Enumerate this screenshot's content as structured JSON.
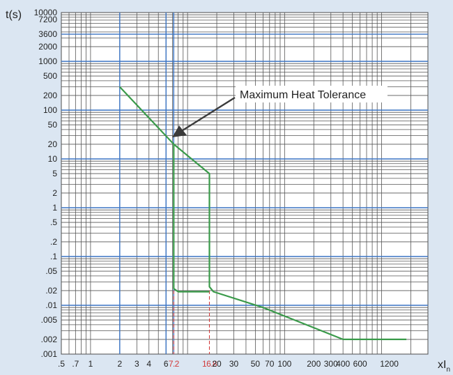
{
  "chart_data": {
    "type": "line",
    "title": "",
    "ylabel": "t(s)",
    "xlabel": "xI",
    "xlabel_sub": "n",
    "x_scale": "log",
    "y_scale": "log",
    "xlim": [
      0.5,
      3000
    ],
    "ylim": [
      0.001,
      10000
    ],
    "grid": true,
    "x_ticks": [
      {
        "label": ".5",
        "value": 0.5
      },
      {
        "label": ".7",
        "value": 0.7
      },
      {
        "label": "1",
        "value": 1
      },
      {
        "label": "2",
        "value": 2
      },
      {
        "label": "3",
        "value": 3
      },
      {
        "label": "4",
        "value": 4
      },
      {
        "label": "6",
        "value": 6
      },
      {
        "label": "7.2",
        "value": 7.2,
        "highlight": true
      },
      {
        "label": "16.8",
        "value": 16.8,
        "highlight": true
      },
      {
        "label": "20",
        "value": 20
      },
      {
        "label": "30",
        "value": 30
      },
      {
        "label": "50",
        "value": 50
      },
      {
        "label": "70",
        "value": 70
      },
      {
        "label": "100",
        "value": 100
      },
      {
        "label": "200",
        "value": 200
      },
      {
        "label": "300",
        "value": 300
      },
      {
        "label": "400",
        "value": 400
      },
      {
        "label": "600",
        "value": 600
      },
      {
        "label": "1200",
        "value": 1200
      }
    ],
    "y_ticks": [
      {
        "label": ".001",
        "value": 0.001
      },
      {
        "label": ".002",
        "value": 0.002
      },
      {
        "label": ".005",
        "value": 0.005
      },
      {
        "label": ".01",
        "value": 0.01
      },
      {
        "label": ".02",
        "value": 0.02
      },
      {
        "label": ".05",
        "value": 0.05
      },
      {
        "label": ".1",
        "value": 0.1
      },
      {
        "label": ".2",
        "value": 0.2
      },
      {
        "label": ".5",
        "value": 0.5
      },
      {
        "label": "1",
        "value": 1
      },
      {
        "label": "2",
        "value": 2
      },
      {
        "label": "5",
        "value": 5
      },
      {
        "label": "10",
        "value": 10
      },
      {
        "label": "20",
        "value": 20
      },
      {
        "label": "50",
        "value": 50
      },
      {
        "label": "100",
        "value": 100
      },
      {
        "label": "200",
        "value": 200
      },
      {
        "label": "500",
        "value": 500
      },
      {
        "label": "1000",
        "value": 1000
      },
      {
        "label": "2000",
        "value": 2000
      },
      {
        "label": "3600",
        "value": 3600
      },
      {
        "label": "7200",
        "value": 7200
      },
      {
        "label": "10000",
        "value": 10000
      }
    ],
    "blue_vlines": [
      2,
      6,
      7.2
    ],
    "blue_hlines": [
      3600,
      1000,
      100,
      10,
      1,
      0.1,
      0.01
    ],
    "dashed_vlines": [
      7.2,
      16.8
    ],
    "series": [
      {
        "name": "",
        "color": "#3a9a4a",
        "points": [
          [
            2,
            300
          ],
          [
            7.2,
            20
          ],
          [
            7.2,
            0.022
          ],
          [
            8,
            0.019
          ],
          [
            16.8,
            0.019
          ]
        ]
      },
      {
        "name": "",
        "color": "#3a9a4a",
        "points": [
          [
            7.2,
            20
          ],
          [
            16.8,
            5
          ],
          [
            16.8,
            0.024
          ],
          [
            18.5,
            0.019
          ],
          [
            60,
            0.009
          ],
          [
            400,
            0.002
          ],
          [
            1800,
            0.002
          ]
        ]
      }
    ],
    "annotations": [
      {
        "text": "Maximum Heat Tolerance",
        "x": 7.2,
        "y": 20
      }
    ]
  }
}
